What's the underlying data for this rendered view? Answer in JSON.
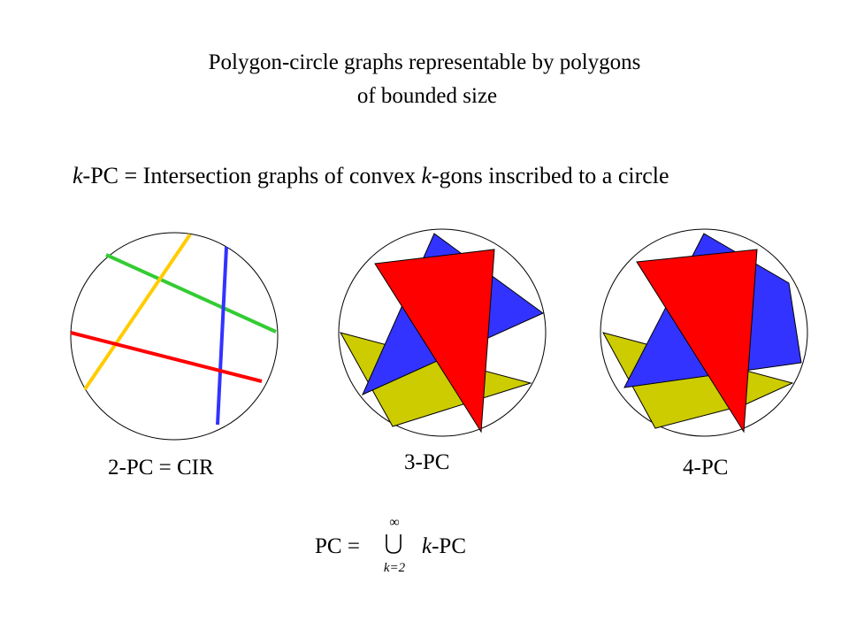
{
  "title": {
    "line1": "Polygon-circle graphs representable by polygons",
    "line2": "of bounded size"
  },
  "definition": {
    "k": "k",
    "part1": "-PC = Intersection graphs of convex ",
    "k2": "k",
    "part2": "-gons inscribed to a circle"
  },
  "captions": {
    "cir": "2-PC = CIR",
    "three": "3-PC",
    "four": "4-PC"
  },
  "formula": {
    "lhs": "PC = ",
    "upper": "∞",
    "lower": "k=2",
    "k": "k",
    "rhs": "-PC"
  },
  "colors": {
    "green": "#33cc33",
    "yellow": "#ffcc00",
    "blue": "#3333ff",
    "red": "#ff0000",
    "olive": "#cccc00"
  }
}
